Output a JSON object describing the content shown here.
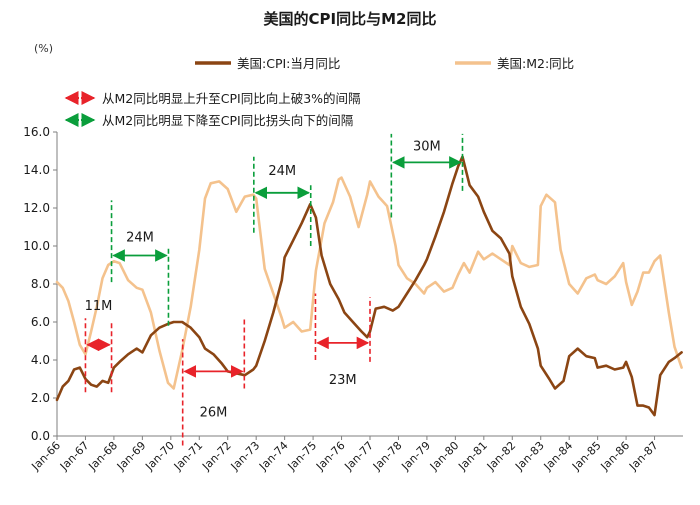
{
  "chart_data": {
    "type": "line",
    "title": "美国的CPI同比与M2同比",
    "y_unit": "(%)",
    "ylim": [
      0,
      16
    ],
    "y_ticks": [
      "0.0",
      "2.0",
      "4.0",
      "6.0",
      "8.0",
      "10.0",
      "12.0",
      "14.0",
      "16.0"
    ],
    "x_ticks": [
      "Jan-66",
      "Jan-67",
      "Jan-68",
      "Jan-69",
      "Jan-70",
      "Jan-71",
      "Jan-72",
      "Jan-73",
      "Jan-74",
      "Jan-75",
      "Jan-76",
      "Jan-77",
      "Jan-78",
      "Jan-79",
      "Jan-80",
      "Jan-81",
      "Jan-82",
      "Jan-83",
      "Jan-84",
      "Jan-85",
      "Jan-86",
      "Jan-87"
    ],
    "x_range": [
      "1966-01",
      "1988-01"
    ],
    "grid": false,
    "series": [
      {
        "name": "美国:CPI:当月同比",
        "color": "#8B4513",
        "points": [
          [
            1966.0,
            1.9
          ],
          [
            1966.2,
            2.6
          ],
          [
            1966.4,
            2.9
          ],
          [
            1966.6,
            3.5
          ],
          [
            1966.8,
            3.6
          ],
          [
            1967.0,
            3.0
          ],
          [
            1967.2,
            2.7
          ],
          [
            1967.4,
            2.6
          ],
          [
            1967.6,
            2.9
          ],
          [
            1967.8,
            2.8
          ],
          [
            1968.0,
            3.6
          ],
          [
            1968.2,
            3.9
          ],
          [
            1968.5,
            4.3
          ],
          [
            1968.8,
            4.6
          ],
          [
            1969.0,
            4.4
          ],
          [
            1969.3,
            5.3
          ],
          [
            1969.6,
            5.7
          ],
          [
            1969.9,
            5.9
          ],
          [
            1970.1,
            6.0
          ],
          [
            1970.4,
            6.0
          ],
          [
            1970.7,
            5.7
          ],
          [
            1971.0,
            5.2
          ],
          [
            1971.2,
            4.6
          ],
          [
            1971.5,
            4.3
          ],
          [
            1971.8,
            3.8
          ],
          [
            1972.0,
            3.4
          ],
          [
            1972.3,
            3.3
          ],
          [
            1972.6,
            3.2
          ],
          [
            1972.9,
            3.5
          ],
          [
            1973.0,
            3.7
          ],
          [
            1973.3,
            5.0
          ],
          [
            1973.6,
            6.5
          ],
          [
            1973.9,
            8.2
          ],
          [
            1974.0,
            9.4
          ],
          [
            1974.3,
            10.3
          ],
          [
            1974.6,
            11.2
          ],
          [
            1974.9,
            12.2
          ],
          [
            1975.1,
            11.5
          ],
          [
            1975.3,
            9.5
          ],
          [
            1975.6,
            8.0
          ],
          [
            1975.9,
            7.2
          ],
          [
            1976.1,
            6.5
          ],
          [
            1976.4,
            6.0
          ],
          [
            1976.7,
            5.5
          ],
          [
            1976.9,
            5.2
          ],
          [
            1977.0,
            5.5
          ],
          [
            1977.2,
            6.7
          ],
          [
            1977.5,
            6.8
          ],
          [
            1977.8,
            6.6
          ],
          [
            1978.0,
            6.8
          ],
          [
            1978.3,
            7.5
          ],
          [
            1978.6,
            8.2
          ],
          [
            1978.9,
            9.0
          ],
          [
            1979.0,
            9.3
          ],
          [
            1979.3,
            10.5
          ],
          [
            1979.6,
            11.8
          ],
          [
            1979.9,
            13.3
          ],
          [
            1980.1,
            14.2
          ],
          [
            1980.25,
            14.7
          ],
          [
            1980.5,
            13.2
          ],
          [
            1980.8,
            12.6
          ],
          [
            1981.0,
            11.8
          ],
          [
            1981.3,
            10.8
          ],
          [
            1981.6,
            10.4
          ],
          [
            1981.9,
            9.6
          ],
          [
            1982.0,
            8.4
          ],
          [
            1982.3,
            6.8
          ],
          [
            1982.6,
            5.9
          ],
          [
            1982.9,
            4.6
          ],
          [
            1983.0,
            3.7
          ],
          [
            1983.3,
            3.0
          ],
          [
            1983.5,
            2.5
          ],
          [
            1983.8,
            2.9
          ],
          [
            1984.0,
            4.2
          ],
          [
            1984.3,
            4.6
          ],
          [
            1984.6,
            4.2
          ],
          [
            1984.9,
            4.1
          ],
          [
            1985.0,
            3.6
          ],
          [
            1985.3,
            3.7
          ],
          [
            1985.6,
            3.5
          ],
          [
            1985.9,
            3.6
          ],
          [
            1986.0,
            3.9
          ],
          [
            1986.2,
            3.1
          ],
          [
            1986.4,
            1.6
          ],
          [
            1986.6,
            1.6
          ],
          [
            1986.8,
            1.5
          ],
          [
            1987.0,
            1.1
          ],
          [
            1987.2,
            3.2
          ],
          [
            1987.5,
            3.9
          ],
          [
            1987.7,
            4.1
          ],
          [
            1987.95,
            4.4
          ]
        ]
      },
      {
        "name": "美国:M2:同比",
        "color": "#F4C28D",
        "points": [
          [
            1966.0,
            8.1
          ],
          [
            1966.2,
            7.8
          ],
          [
            1966.4,
            7.1
          ],
          [
            1966.6,
            6.0
          ],
          [
            1966.8,
            4.8
          ],
          [
            1967.0,
            4.3
          ],
          [
            1967.2,
            5.5
          ],
          [
            1967.4,
            6.8
          ],
          [
            1967.6,
            8.3
          ],
          [
            1967.8,
            9.0
          ],
          [
            1968.0,
            9.2
          ],
          [
            1968.2,
            9.1
          ],
          [
            1968.5,
            8.2
          ],
          [
            1968.8,
            7.8
          ],
          [
            1969.0,
            7.7
          ],
          [
            1969.3,
            6.5
          ],
          [
            1969.6,
            4.5
          ],
          [
            1969.9,
            2.8
          ],
          [
            1970.1,
            2.5
          ],
          [
            1970.4,
            4.5
          ],
          [
            1970.7,
            6.8
          ],
          [
            1971.0,
            9.8
          ],
          [
            1971.2,
            12.5
          ],
          [
            1971.4,
            13.3
          ],
          [
            1971.7,
            13.4
          ],
          [
            1972.0,
            13.0
          ],
          [
            1972.3,
            11.8
          ],
          [
            1972.6,
            12.6
          ],
          [
            1972.9,
            12.7
          ],
          [
            1973.0,
            12.5
          ],
          [
            1973.3,
            8.8
          ],
          [
            1973.6,
            7.5
          ],
          [
            1973.9,
            6.2
          ],
          [
            1974.0,
            5.7
          ],
          [
            1974.3,
            6.0
          ],
          [
            1974.6,
            5.5
          ],
          [
            1974.9,
            5.6
          ],
          [
            1975.1,
            8.7
          ],
          [
            1975.4,
            11.2
          ],
          [
            1975.7,
            12.3
          ],
          [
            1975.9,
            13.5
          ],
          [
            1976.0,
            13.6
          ],
          [
            1976.3,
            12.6
          ],
          [
            1976.6,
            11.0
          ],
          [
            1976.9,
            12.7
          ],
          [
            1977.0,
            13.4
          ],
          [
            1977.3,
            12.6
          ],
          [
            1977.6,
            12.1
          ],
          [
            1977.9,
            10.0
          ],
          [
            1978.0,
            9.0
          ],
          [
            1978.3,
            8.3
          ],
          [
            1978.6,
            8.0
          ],
          [
            1978.9,
            7.5
          ],
          [
            1979.0,
            7.8
          ],
          [
            1979.3,
            8.1
          ],
          [
            1979.6,
            7.6
          ],
          [
            1979.9,
            7.8
          ],
          [
            1980.1,
            8.5
          ],
          [
            1980.3,
            9.1
          ],
          [
            1980.5,
            8.6
          ],
          [
            1980.8,
            9.7
          ],
          [
            1981.0,
            9.3
          ],
          [
            1981.3,
            9.6
          ],
          [
            1981.6,
            9.3
          ],
          [
            1981.9,
            9.0
          ],
          [
            1982.0,
            10.0
          ],
          [
            1982.3,
            9.1
          ],
          [
            1982.6,
            8.9
          ],
          [
            1982.9,
            9.0
          ],
          [
            1983.0,
            12.1
          ],
          [
            1983.2,
            12.7
          ],
          [
            1983.5,
            12.3
          ],
          [
            1983.7,
            9.8
          ],
          [
            1984.0,
            8.0
          ],
          [
            1984.3,
            7.5
          ],
          [
            1984.6,
            8.3
          ],
          [
            1984.9,
            8.5
          ],
          [
            1985.0,
            8.2
          ],
          [
            1985.3,
            8.0
          ],
          [
            1985.6,
            8.4
          ],
          [
            1985.9,
            9.1
          ],
          [
            1986.0,
            8.1
          ],
          [
            1986.2,
            6.9
          ],
          [
            1986.4,
            7.6
          ],
          [
            1986.6,
            8.6
          ],
          [
            1986.8,
            8.6
          ],
          [
            1987.0,
            9.2
          ],
          [
            1987.2,
            9.5
          ],
          [
            1987.5,
            6.5
          ],
          [
            1987.7,
            4.7
          ],
          [
            1987.95,
            3.6
          ]
        ]
      }
    ],
    "legend_top": [
      {
        "label": "美国:CPI:当月同比",
        "color": "#8B4513"
      },
      {
        "label": "美国:M2:同比",
        "color": "#F4C28D"
      }
    ],
    "legend_annot": [
      {
        "label": "从M2同比明显上升至CPI同比向上破3%的间隔",
        "color": "#E8232A"
      },
      {
        "label": "从M2同比明显下降至CPI同比拐头向下的间隔",
        "color": "#0A9E3B"
      }
    ],
    "intervals": [
      {
        "label": "11M",
        "kind": "up",
        "color": "#E8232A",
        "x0": 1967.0,
        "x1": 1967.917,
        "y": 4.8,
        "label_y": 6.9
      },
      {
        "label": "24M",
        "kind": "down",
        "color": "#0A9E3B",
        "x0": 1967.917,
        "x1": 1969.917,
        "y": 9.5,
        "label_y": 10.5
      },
      {
        "label": "26M",
        "kind": "up",
        "color": "#E8232A",
        "x0": 1970.417,
        "x1": 1972.583,
        "y": 3.4,
        "label_y": 1.3
      },
      {
        "label": "24M",
        "kind": "down",
        "color": "#0A9E3B",
        "x0": 1972.917,
        "x1": 1974.917,
        "y": 12.8,
        "label_y": 14.0
      },
      {
        "label": "23M",
        "kind": "up",
        "color": "#E8232A",
        "x0": 1975.083,
        "x1": 1977.0,
        "y": 4.9,
        "label_y": 3.0
      },
      {
        "label": "30M",
        "kind": "down",
        "color": "#0A9E3B",
        "x0": 1977.75,
        "x1": 1980.25,
        "y": 14.4,
        "label_y": 15.3
      }
    ],
    "interval_markers": [
      {
        "color": "#E8232A",
        "x": 1967.0,
        "y0": 2.3,
        "y1": 6.2
      },
      {
        "color": "#E8232A",
        "x": 1967.917,
        "y0": 2.3,
        "y1": 6.0
      },
      {
        "color": "#0A9E3B",
        "x": 1967.917,
        "y0": 8.1,
        "y1": 12.4
      },
      {
        "color": "#0A9E3B",
        "x": 1969.917,
        "y0": 5.8,
        "y1": 9.9
      },
      {
        "color": "#E8232A",
        "x": 1970.417,
        "y0": -0.5,
        "y1": 5.1
      },
      {
        "color": "#E8232A",
        "x": 1972.583,
        "y0": 2.5,
        "y1": 6.2
      },
      {
        "color": "#0A9E3B",
        "x": 1972.917,
        "y0": 10.7,
        "y1": 14.7
      },
      {
        "color": "#0A9E3B",
        "x": 1974.917,
        "y0": 10.0,
        "y1": 13.2
      },
      {
        "color": "#E8232A",
        "x": 1975.083,
        "y0": 4.0,
        "y1": 7.5
      },
      {
        "color": "#E8232A",
        "x": 1977.0,
        "y0": 3.9,
        "y1": 7.3
      },
      {
        "color": "#0A9E3B",
        "x": 1977.75,
        "y0": 11.5,
        "y1": 15.9
      },
      {
        "color": "#0A9E3B",
        "x": 1980.25,
        "y0": 12.9,
        "y1": 15.9
      }
    ]
  }
}
